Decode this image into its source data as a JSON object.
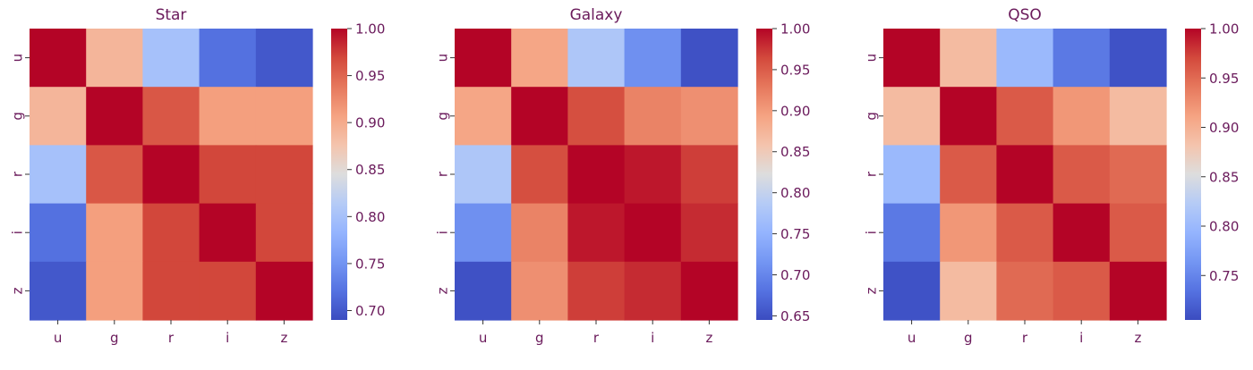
{
  "text_color": "#6a1a5b",
  "colormap": "coolwarm",
  "chart_data": [
    {
      "type": "heatmap",
      "title": "Star",
      "x_categories": [
        "u",
        "g",
        "r",
        "i",
        "z"
      ],
      "y_categories": [
        "u",
        "g",
        "r",
        "i",
        "z"
      ],
      "values": [
        [
          1.0,
          0.89,
          0.8,
          0.72,
          0.7
        ],
        [
          0.89,
          1.0,
          0.96,
          0.91,
          0.91
        ],
        [
          0.8,
          0.96,
          1.0,
          0.97,
          0.97
        ],
        [
          0.72,
          0.91,
          0.97,
          1.0,
          0.97
        ],
        [
          0.7,
          0.91,
          0.97,
          0.97,
          1.0
        ]
      ],
      "colorbar": {
        "vmin": 0.69,
        "vmax": 1.0,
        "ticks": [
          "0.70",
          "0.75",
          "0.80",
          "0.85",
          "0.90",
          "0.95",
          "1.00"
        ],
        "tick_values": [
          0.7,
          0.75,
          0.8,
          0.85,
          0.9,
          0.95,
          1.0
        ]
      }
    },
    {
      "type": "heatmap",
      "title": "Galaxy",
      "x_categories": [
        "u",
        "g",
        "r",
        "i",
        "z"
      ],
      "y_categories": [
        "u",
        "g",
        "r",
        "i",
        "z"
      ],
      "values": [
        [
          1.0,
          0.89,
          0.78,
          0.71,
          0.65
        ],
        [
          0.89,
          1.0,
          0.96,
          0.92,
          0.91
        ],
        [
          0.78,
          0.96,
          1.0,
          0.99,
          0.97
        ],
        [
          0.71,
          0.92,
          0.99,
          1.0,
          0.98
        ],
        [
          0.65,
          0.91,
          0.97,
          0.98,
          1.0
        ]
      ],
      "colorbar": {
        "vmin": 0.645,
        "vmax": 1.0,
        "ticks": [
          "0.65",
          "0.70",
          "0.75",
          "0.80",
          "0.85",
          "0.90",
          "0.95",
          "1.00"
        ],
        "tick_values": [
          0.65,
          0.7,
          0.75,
          0.8,
          0.85,
          0.9,
          0.95,
          1.0
        ]
      }
    },
    {
      "type": "heatmap",
      "title": "QSO",
      "x_categories": [
        "u",
        "g",
        "r",
        "i",
        "z"
      ],
      "y_categories": [
        "u",
        "g",
        "r",
        "i",
        "z"
      ],
      "values": [
        [
          1.0,
          0.89,
          0.8,
          0.74,
          0.71
        ],
        [
          0.89,
          1.0,
          0.96,
          0.92,
          0.89
        ],
        [
          0.8,
          0.96,
          1.0,
          0.96,
          0.95
        ],
        [
          0.74,
          0.92,
          0.96,
          1.0,
          0.96
        ],
        [
          0.71,
          0.89,
          0.95,
          0.96,
          1.0
        ]
      ],
      "colorbar": {
        "vmin": 0.705,
        "vmax": 1.0,
        "ticks": [
          "0.75",
          "0.80",
          "0.85",
          "0.90",
          "0.95",
          "1.00"
        ],
        "tick_values": [
          0.75,
          0.8,
          0.85,
          0.9,
          0.95,
          1.0
        ]
      }
    }
  ]
}
